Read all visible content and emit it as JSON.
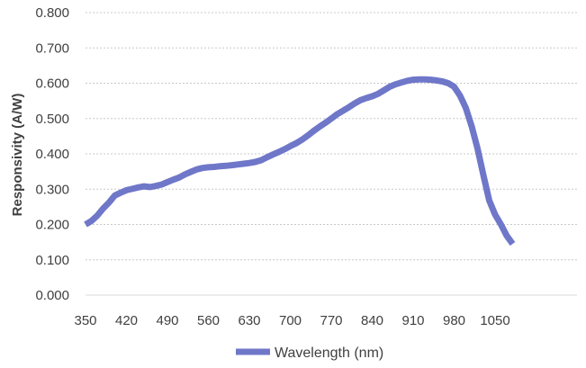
{
  "chart_data": {
    "type": "line",
    "ylabel": "Responsivity (A/W)",
    "xlabel": "",
    "grid": true,
    "legend_position": "bottom",
    "ylim": [
      0,
      0.8
    ],
    "yticks": [
      "0.000",
      "0.100",
      "0.200",
      "0.300",
      "0.400",
      "0.500",
      "0.600",
      "0.700",
      "0.800"
    ],
    "xlim": [
      350,
      1190
    ],
    "xticks": [
      "350",
      "420",
      "490",
      "560",
      "630",
      "700",
      "770",
      "840",
      "910",
      "980",
      "1050"
    ],
    "series": [
      {
        "name": "Wavelength (nm)",
        "color": "#6F77C9",
        "x": [
          350,
          360,
          370,
          380,
          390,
          400,
          410,
          420,
          430,
          440,
          450,
          460,
          470,
          480,
          490,
          500,
          510,
          520,
          530,
          540,
          550,
          560,
          570,
          580,
          590,
          600,
          610,
          620,
          630,
          640,
          650,
          660,
          670,
          680,
          690,
          700,
          710,
          720,
          730,
          740,
          750,
          760,
          770,
          780,
          790,
          800,
          810,
          820,
          830,
          840,
          850,
          860,
          870,
          880,
          890,
          900,
          910,
          920,
          930,
          940,
          950,
          960,
          970,
          980,
          990,
          1000,
          1010,
          1020,
          1030,
          1040,
          1050,
          1060,
          1070,
          1080
        ],
        "y": [
          0.2,
          0.21,
          0.225,
          0.245,
          0.262,
          0.282,
          0.29,
          0.297,
          0.301,
          0.305,
          0.308,
          0.306,
          0.309,
          0.313,
          0.32,
          0.327,
          0.333,
          0.342,
          0.349,
          0.356,
          0.36,
          0.362,
          0.363,
          0.365,
          0.366,
          0.368,
          0.37,
          0.372,
          0.374,
          0.377,
          0.382,
          0.39,
          0.398,
          0.405,
          0.413,
          0.422,
          0.43,
          0.44,
          0.452,
          0.465,
          0.477,
          0.488,
          0.5,
          0.512,
          0.522,
          0.532,
          0.543,
          0.552,
          0.558,
          0.563,
          0.57,
          0.58,
          0.59,
          0.597,
          0.602,
          0.607,
          0.61,
          0.611,
          0.611,
          0.61,
          0.608,
          0.605,
          0.6,
          0.59,
          0.565,
          0.53,
          0.478,
          0.415,
          0.34,
          0.268,
          0.228,
          0.2,
          0.168,
          0.145
        ]
      }
    ]
  }
}
